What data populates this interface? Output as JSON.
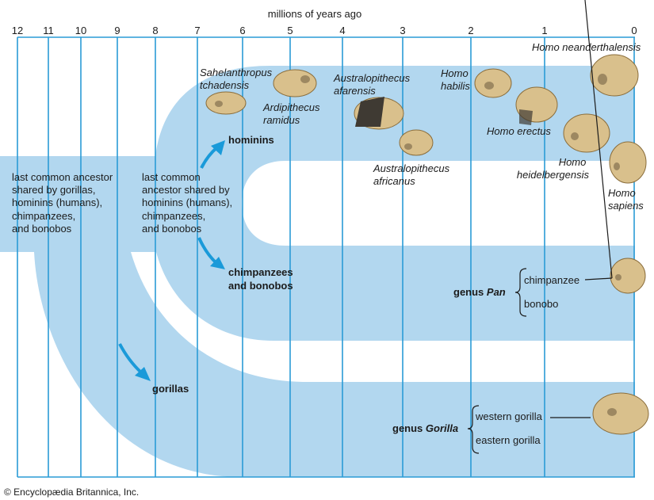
{
  "axis": {
    "title": "millions of years ago",
    "ticks": [
      "12",
      "11",
      "10",
      "9",
      "8",
      "7",
      "6",
      "5",
      "4",
      "3",
      "2",
      "1",
      "0"
    ]
  },
  "colors": {
    "band": "#b2d7ef",
    "line": "#2a9bd6",
    "arrow": "#1a9ad9",
    "skull": "#d9c08c"
  },
  "ancestor_all": [
    "last common ancestor",
    "shared by gorillas,",
    "hominins (humans),",
    "chimpanzees,",
    "and bonobos"
  ],
  "ancestor_hc": [
    "last common",
    "ancestor shared by",
    "hominins (humans),",
    "chimpanzees,",
    "and bonobos"
  ],
  "branches": {
    "hominins": "hominins",
    "chimps": [
      "chimpanzees",
      "and bonobos"
    ],
    "gorillas": "gorillas"
  },
  "species": {
    "sahelanthropus": [
      "Sahelanthropus",
      "tchadensis"
    ],
    "ardipithecus": [
      "Ardipithecus",
      "ramidus"
    ],
    "afarensis": [
      "Australopithecus",
      "afarensis"
    ],
    "africanus": [
      "Australopithecus",
      "africanus"
    ],
    "habilis": [
      "Homo",
      "habilis"
    ],
    "erectus": "Homo erectus",
    "neanderthalensis": "Homo neanderthalensis",
    "heidelbergensis": [
      "Homo",
      "heidelbergensis"
    ],
    "sapiens": [
      "Homo",
      "sapiens"
    ]
  },
  "pan": {
    "genus_prefix": "genus ",
    "genus_name": "Pan",
    "members": [
      "chimpanzee",
      "bonobo"
    ]
  },
  "gorilla": {
    "genus_prefix": "genus ",
    "genus_name": "Gorilla",
    "members": [
      "western gorilla",
      "eastern gorilla"
    ]
  },
  "copyright": "© Encyclopædia Britannica, Inc."
}
